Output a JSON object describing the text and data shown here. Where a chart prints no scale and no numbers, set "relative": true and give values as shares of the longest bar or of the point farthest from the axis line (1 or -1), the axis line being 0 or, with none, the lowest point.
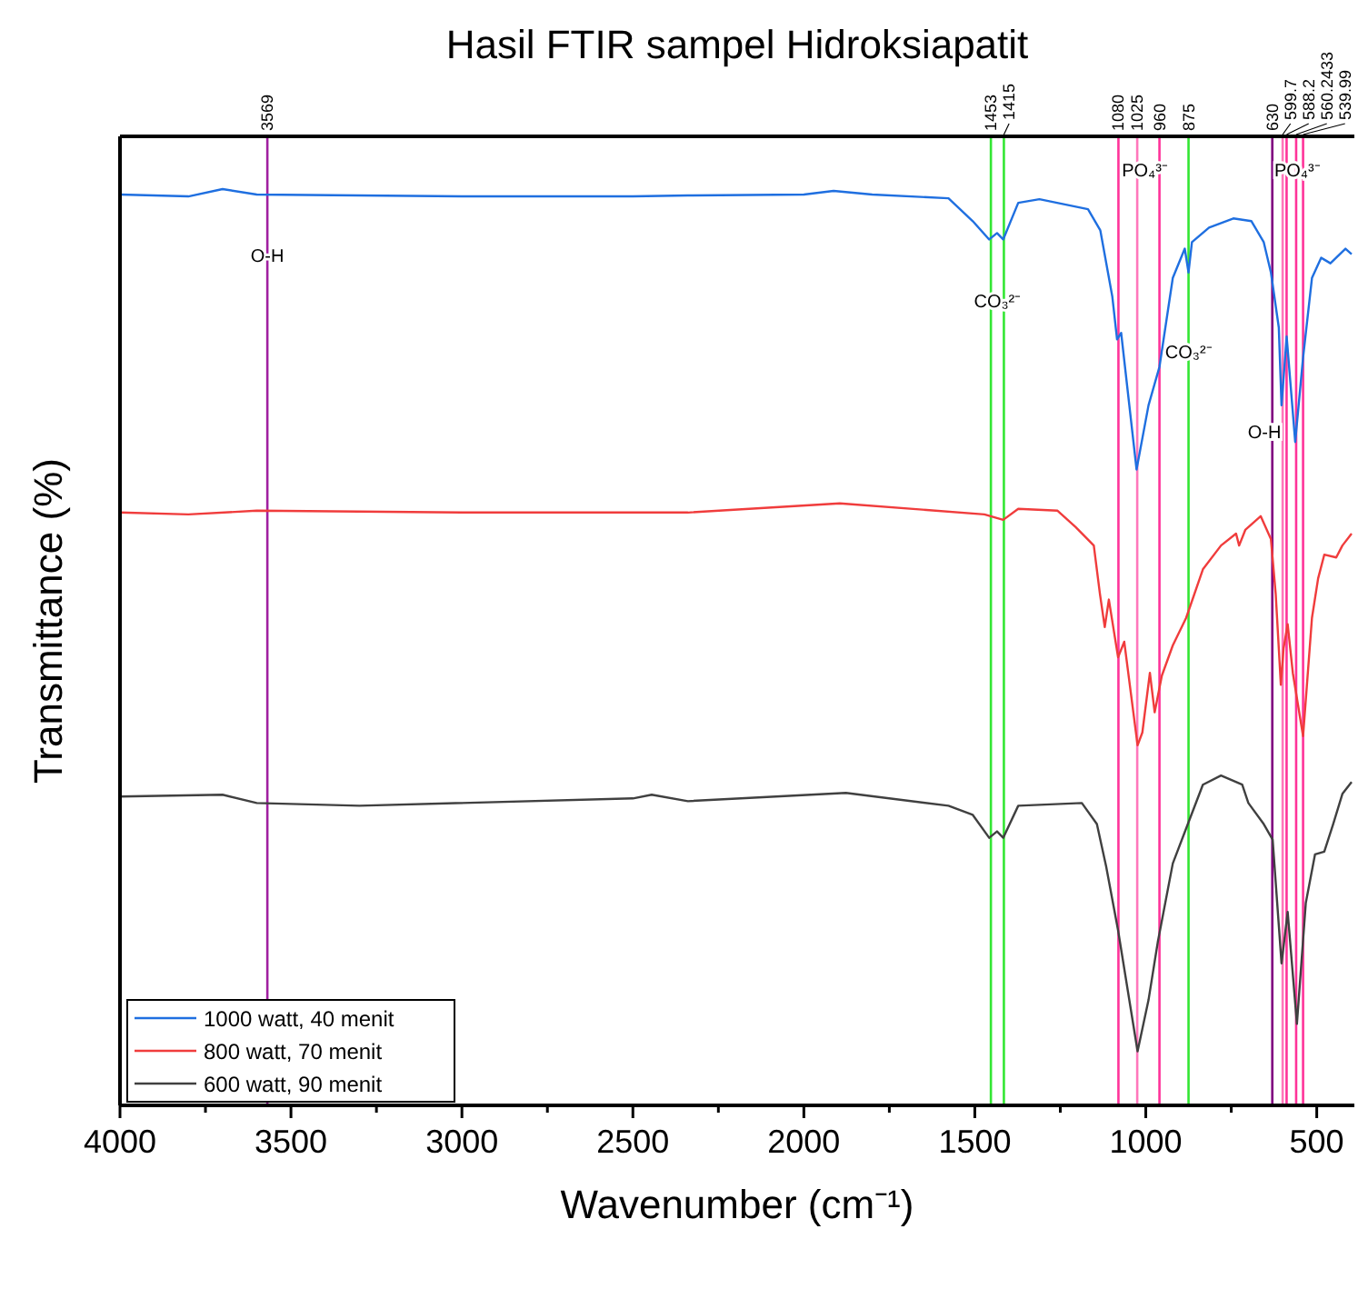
{
  "chart_data": {
    "type": "line",
    "title": "Hasil FTIR sampel Hidroksiapatit",
    "xlabel": "Wavenumber (cm⁻¹)",
    "ylabel": "Transmittance (%)",
    "relative": true,
    "xlim": [
      4000,
      390
    ],
    "xticks": [
      4000,
      {
        "value": 3750,
        "label": null
      },
      3500,
      {
        "value": 3250,
        "label": null
      },
      3000,
      {
        "value": 2750,
        "label": null
      },
      2500,
      {
        "value": 2250,
        "label": null
      },
      2000,
      {
        "value": 1750,
        "label": null
      },
      1500,
      {
        "value": 1250,
        "label": null
      },
      1000,
      {
        "value": 750,
        "label": null
      },
      500
    ],
    "legend": "bottom left",
    "grid": false,
    "series": [
      {
        "name": "1000 watt, 40 menit",
        "color": "#1f6fe0",
        "x": [
          4000,
          3800,
          3700,
          3600,
          3000,
          2500,
          2339,
          2000,
          1913,
          1800,
          1577,
          1506,
          1458,
          1435,
          1417,
          1373,
          1311,
          1169,
          1133,
          1098,
          1084,
          1072,
          1027,
          992,
          960,
          921,
          886,
          875,
          865,
          815,
          744,
          691,
          655,
          634,
          611,
          603,
          588,
          563,
          540,
          514,
          487,
          460,
          416,
          398
        ],
        "values": [
          0.994,
          0.992,
          1.0,
          0.994,
          0.992,
          0.992,
          0.993,
          0.994,
          0.998,
          0.994,
          0.99,
          0.965,
          0.945,
          0.952,
          0.945,
          0.985,
          0.989,
          0.978,
          0.955,
          0.883,
          0.836,
          0.843,
          0.694,
          0.764,
          0.806,
          0.903,
          0.935,
          0.909,
          0.942,
          0.958,
          0.968,
          0.965,
          0.942,
          0.909,
          0.849,
          0.764,
          0.839,
          0.724,
          0.816,
          0.903,
          0.925,
          0.919,
          0.935,
          0.929
        ]
      },
      {
        "name": "800 watt, 70 menit",
        "color": "#f03c3c",
        "x": [
          4000,
          3800,
          3600,
          3000,
          2339,
          1895,
          1472,
          1417,
          1373,
          1258,
          1205,
          1152,
          1134,
          1120,
          1108,
          1081,
          1063,
          1024,
          1010,
          988,
          974,
          953,
          921,
          882,
          833,
          780,
          736,
          727,
          709,
          664,
          634,
          620,
          605,
          597,
          585,
          570,
          540,
          514,
          496,
          478,
          443,
          425,
          398
        ],
        "values": [
          0.647,
          0.645,
          0.649,
          0.647,
          0.647,
          0.657,
          0.645,
          0.639,
          0.651,
          0.649,
          0.631,
          0.611,
          0.558,
          0.522,
          0.552,
          0.489,
          0.506,
          0.393,
          0.407,
          0.472,
          0.429,
          0.469,
          0.502,
          0.532,
          0.585,
          0.611,
          0.624,
          0.611,
          0.628,
          0.643,
          0.618,
          0.558,
          0.459,
          0.499,
          0.525,
          0.472,
          0.403,
          0.532,
          0.575,
          0.601,
          0.598,
          0.611,
          0.624
        ]
      },
      {
        "name": "600 watt, 90 menit",
        "color": "#404040",
        "x": [
          4000,
          3700,
          3600,
          3300,
          2500,
          2445,
          2339,
          1877,
          1577,
          1506,
          1458,
          1435,
          1417,
          1373,
          1187,
          1143,
          1116,
          1081,
          1024,
          992,
          965,
          921,
          877,
          833,
          780,
          718,
          700,
          655,
          629,
          603,
          585,
          558,
          532,
          505,
          478,
          452,
          425,
          398
        ],
        "values": [
          0.337,
          0.339,
          0.33,
          0.327,
          0.335,
          0.339,
          0.332,
          0.341,
          0.327,
          0.317,
          0.292,
          0.299,
          0.292,
          0.327,
          0.33,
          0.307,
          0.261,
          0.191,
          0.059,
          0.115,
          0.178,
          0.264,
          0.307,
          0.35,
          0.36,
          0.35,
          0.33,
          0.307,
          0.29,
          0.155,
          0.211,
          0.089,
          0.221,
          0.274,
          0.277,
          0.307,
          0.34,
          0.353
        ]
      }
    ],
    "ref_lines": [
      {
        "axis": "x",
        "value": 3569,
        "label": "3569",
        "color": "#a020a0"
      },
      {
        "axis": "x",
        "value": 1453,
        "label": "1453",
        "color": "#33e633"
      },
      {
        "axis": "x",
        "value": 1415,
        "label": "1415",
        "color": "#33e633"
      },
      {
        "axis": "x",
        "value": 1080,
        "label": "1080",
        "color": "#ff3399"
      },
      {
        "axis": "x",
        "value": 1025,
        "label": "1025",
        "color": "#ff77bb"
      },
      {
        "axis": "x",
        "value": 960,
        "label": "960",
        "color": "#ff3399"
      },
      {
        "axis": "x",
        "value": 875,
        "label": "875",
        "color": "#33e633"
      },
      {
        "axis": "x",
        "value": 630,
        "label": "630",
        "color": "#800080"
      },
      {
        "axis": "x",
        "value": 599.7,
        "label": "599.7",
        "color": "#ff77bb"
      },
      {
        "axis": "x",
        "value": 588.2,
        "label": "588.2",
        "color": "#ff3399"
      },
      {
        "axis": "x",
        "value": 560.2433,
        "label": "560.2433",
        "color": "#ff3399"
      },
      {
        "axis": "x",
        "value": 539.99,
        "label": "539.99",
        "color": "#ff3399"
      }
    ],
    "annotations": [
      {
        "text": "O-H",
        "x": 3569,
        "y": 0.921
      },
      {
        "text": "CO₃²⁻",
        "x": 1435,
        "y": 0.871
      },
      {
        "text": "PO₄³⁻",
        "x": 1004,
        "y": 1.014
      },
      {
        "text": "CO₃²⁻",
        "x": 876,
        "y": 0.815
      },
      {
        "text": "O-H",
        "x": 653,
        "y": 0.728
      },
      {
        "text": "PO₄³⁻",
        "x": 558,
        "y": 1.014
      }
    ]
  }
}
